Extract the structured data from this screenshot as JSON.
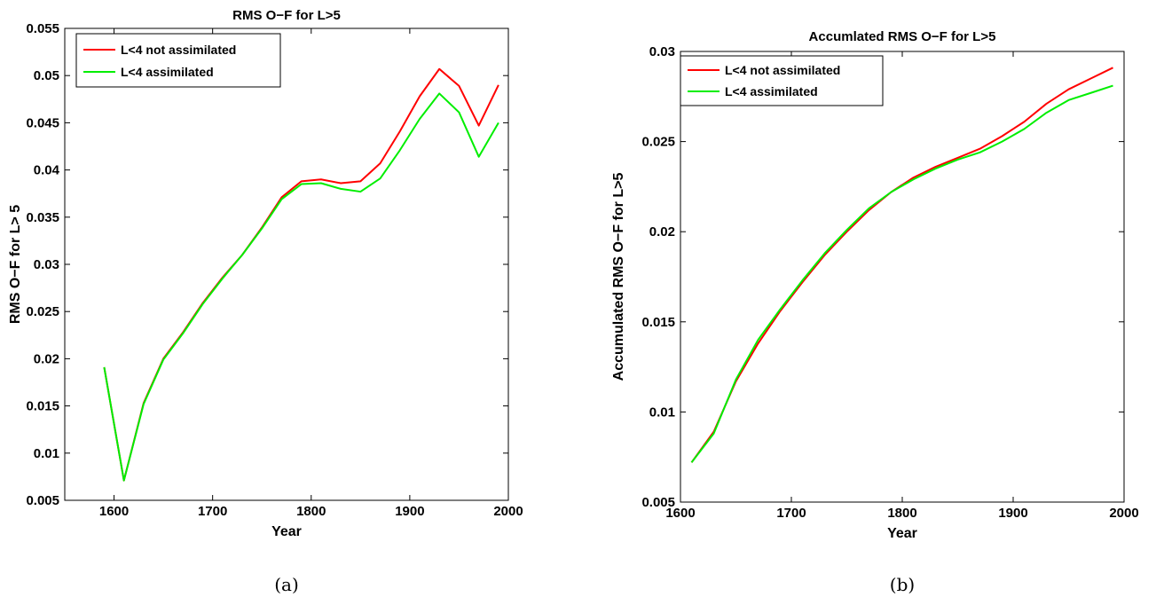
{
  "chart_data": [
    {
      "type": "line",
      "title": "RMS O−F for L>5",
      "xlabel": "Year",
      "ylabel": "RMS O−F for L> 5",
      "xlim": [
        1550,
        2000
      ],
      "ylim": [
        0.005,
        0.055
      ],
      "xticks": [
        "1600",
        "1700",
        "1800",
        "1900",
        "2000"
      ],
      "yticks": [
        "0.005",
        "0.01",
        "0.015",
        "0.02",
        "0.025",
        "0.03",
        "0.035",
        "0.04",
        "0.045",
        "0.05",
        "0.055"
      ],
      "legend_position": "top-left",
      "caption": "(a)",
      "x": [
        1590,
        1610,
        1630,
        1650,
        1670,
        1690,
        1710,
        1730,
        1750,
        1770,
        1790,
        1810,
        1830,
        1850,
        1870,
        1890,
        1910,
        1930,
        1950,
        1970,
        1990
      ],
      "series": [
        {
          "name": "L<4 not assimilated",
          "color": "#ff0000",
          "values": [
            0.0191,
            0.0071,
            0.0153,
            0.02,
            0.0228,
            0.0259,
            0.0286,
            0.031,
            0.0339,
            0.0371,
            0.0388,
            0.039,
            0.0386,
            0.0388,
            0.0407,
            0.0441,
            0.0478,
            0.0507,
            0.0489,
            0.0447,
            0.049
          ]
        },
        {
          "name": "L<4 assimilated",
          "color": "#00ee00",
          "values": [
            0.0191,
            0.0071,
            0.0152,
            0.0199,
            0.0227,
            0.0258,
            0.0285,
            0.031,
            0.0338,
            0.0369,
            0.0385,
            0.0386,
            0.038,
            0.0377,
            0.0391,
            0.0421,
            0.0454,
            0.0481,
            0.0461,
            0.0414,
            0.045
          ]
        }
      ]
    },
    {
      "type": "line",
      "title": "Accumlated RMS O−F for L>5",
      "xlabel": "Year",
      "ylabel": "Accumulated RMS O−F for L>5",
      "xlim": [
        1600,
        2000
      ],
      "ylim": [
        0.005,
        0.03
      ],
      "xticks": [
        "1600",
        "1700",
        "1800",
        "1900",
        "2000"
      ],
      "yticks": [
        "0.005",
        "0.01",
        "0.015",
        "0.02",
        "0.025",
        "0.03"
      ],
      "legend_position": "top-left",
      "caption": "(b)",
      "x": [
        1610,
        1630,
        1650,
        1670,
        1690,
        1710,
        1730,
        1750,
        1770,
        1790,
        1810,
        1830,
        1850,
        1870,
        1890,
        1910,
        1930,
        1950,
        1970,
        1990
      ],
      "series": [
        {
          "name": "L<4 not assimilated",
          "color": "#ff0000",
          "values": [
            0.0072,
            0.0089,
            0.0117,
            0.0138,
            0.0156,
            0.0172,
            0.0187,
            0.02,
            0.0212,
            0.0222,
            0.023,
            0.0236,
            0.0241,
            0.0246,
            0.0253,
            0.0261,
            0.0271,
            0.0279,
            0.0285,
            0.0291
          ]
        },
        {
          "name": "L<4 assimilated",
          "color": "#00ee00",
          "values": [
            0.0072,
            0.0088,
            0.0118,
            0.014,
            0.0157,
            0.0173,
            0.0188,
            0.0201,
            0.0213,
            0.0222,
            0.0229,
            0.0235,
            0.024,
            0.0244,
            0.025,
            0.0257,
            0.0266,
            0.0273,
            0.0277,
            0.0281
          ]
        }
      ]
    }
  ]
}
